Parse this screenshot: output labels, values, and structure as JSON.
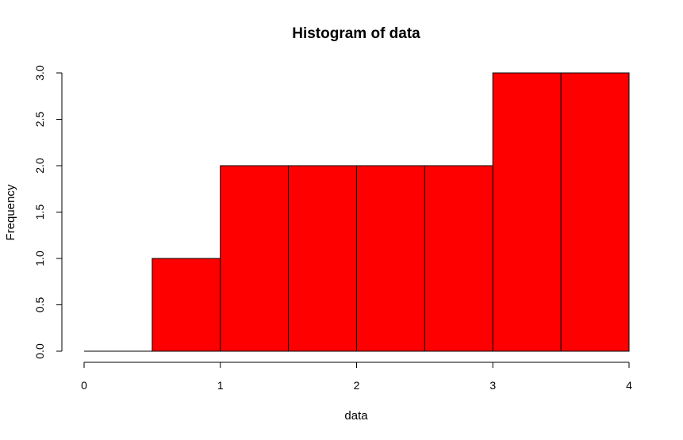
{
  "chart_data": {
    "type": "bar",
    "title": "Histogram of data",
    "xlabel": "data",
    "ylabel": "Frequency",
    "bar_color": "#ff0000",
    "border_color": "#000000",
    "bins": [
      {
        "start": 0.0,
        "end": 0.5,
        "count": 0
      },
      {
        "start": 0.5,
        "end": 1.0,
        "count": 1
      },
      {
        "start": 1.0,
        "end": 1.5,
        "count": 2
      },
      {
        "start": 1.5,
        "end": 2.0,
        "count": 2
      },
      {
        "start": 2.0,
        "end": 2.5,
        "count": 2
      },
      {
        "start": 2.5,
        "end": 3.0,
        "count": 2
      },
      {
        "start": 3.0,
        "end": 3.5,
        "count": 3
      },
      {
        "start": 3.5,
        "end": 4.0,
        "count": 3
      }
    ],
    "xlim": [
      0,
      4
    ],
    "ylim": [
      0,
      3
    ],
    "x_ticks": [
      0,
      1,
      2,
      3,
      4
    ],
    "x_tick_labels": [
      "0",
      "1",
      "2",
      "3",
      "4"
    ],
    "y_ticks": [
      0,
      0.5,
      1,
      1.5,
      2,
      2.5,
      3
    ],
    "y_tick_labels": [
      "0.0",
      "0.5",
      "1.0",
      "1.5",
      "2.0",
      "2.5",
      "3.0"
    ]
  }
}
